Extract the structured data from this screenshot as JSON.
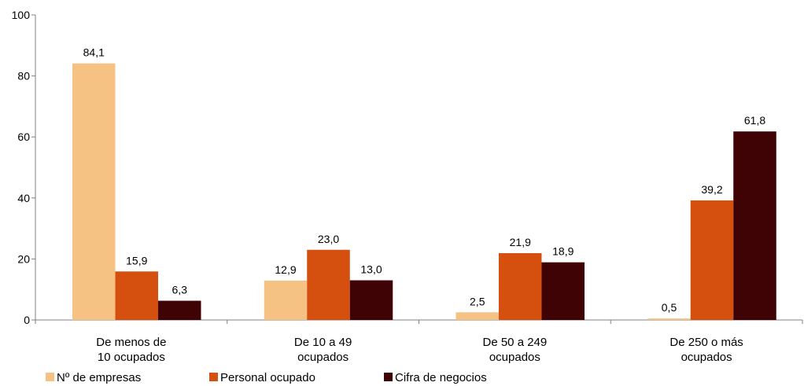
{
  "chart_data": {
    "type": "bar",
    "title": "",
    "xlabel": "",
    "ylabel": "",
    "ylim": [
      0,
      100
    ],
    "yticks": [
      0,
      20,
      40,
      60,
      80,
      100
    ],
    "grid": false,
    "legend_position": "bottom-left",
    "categories": [
      [
        "De menos de",
        "10 ocupados"
      ],
      [
        "De 10 a 49",
        "ocupados"
      ],
      [
        "De 50 a 249",
        "ocupados"
      ],
      [
        "De 250 o más",
        "ocupados"
      ]
    ],
    "series": [
      {
        "name": "Nº de empresas",
        "color": "#F6C283",
        "values": [
          84.1,
          12.9,
          2.5,
          0.5
        ],
        "labels": [
          "84,1",
          "12,9",
          "2,5",
          "0,5"
        ]
      },
      {
        "name": "Personal ocupado",
        "color": "#D5500F",
        "values": [
          15.9,
          23.0,
          21.9,
          39.2
        ],
        "labels": [
          "15,9",
          "23,0",
          "21,9",
          "39,2"
        ]
      },
      {
        "name": "Cifra de negocios",
        "color": "#3F0205",
        "values": [
          6.3,
          13.0,
          18.9,
          61.8
        ],
        "labels": [
          "6,3",
          "13,0",
          "18,9",
          "61,8"
        ]
      }
    ]
  }
}
